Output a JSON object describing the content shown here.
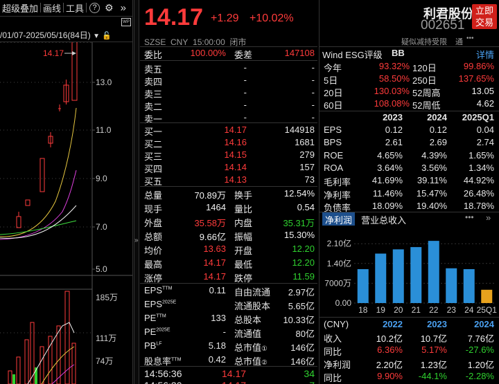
{
  "left": {
    "toolbar": {
      "overlay": "超级叠加",
      "drawline": "画线",
      "tools": "工具",
      "help_icon": "?",
      "gear_icon": "⚙",
      "expand_icon": "»"
    },
    "range_label": "/01/07-2025/05/16(84日)",
    "price_labels": [
      "13.0",
      "11.0",
      "9.0",
      "7.0",
      "5.0"
    ],
    "high_marker": "14.17",
    "vol_labels": [
      "185万",
      "111万",
      "74万"
    ]
  },
  "header": {
    "price": "14.17",
    "change": "+1.29",
    "change_pct": "+10.02%",
    "exchange": "SZSE",
    "currency": "CNY",
    "time": "15:00:00",
    "status": "闭市",
    "name": "利君股份",
    "code": "002651",
    "trade_btn_line1": "立即",
    "trade_btn_line2": "交易",
    "note": "疑似减持受限",
    "note2": "通"
  },
  "colors": {
    "up": "#ff3b3b",
    "down": "#2fd12f",
    "accent": "#1d4f8c",
    "bar": "#2a8fd8",
    "bar_last": "#e8a21d",
    "highlight": "#f0a030"
  },
  "orderbook": {
    "weibi_label": "委比",
    "weibi": "100.00%",
    "weicha_label": "委差",
    "weicha": "147108",
    "asks": [
      {
        "label": "卖五",
        "price": "-",
        "vol": "-"
      },
      {
        "label": "卖四",
        "price": "-",
        "vol": "-"
      },
      {
        "label": "卖三",
        "price": "-",
        "vol": "-"
      },
      {
        "label": "卖二",
        "price": "-",
        "vol": "-"
      },
      {
        "label": "卖一",
        "price": "-",
        "vol": "-"
      }
    ],
    "bids": [
      {
        "label": "买一",
        "price": "14.17",
        "vol": "144918"
      },
      {
        "label": "买二",
        "price": "14.16",
        "vol": "1681"
      },
      {
        "label": "买三",
        "price": "14.15",
        "vol": "279"
      },
      {
        "label": "买四",
        "price": "14.14",
        "vol": "157"
      },
      {
        "label": "买五",
        "price": "14.13",
        "vol": "73"
      }
    ]
  },
  "stats": [
    {
      "l1": "总量",
      "v1": "70.89万",
      "c1": "white",
      "l2": "换手",
      "v2": "12.54%",
      "c2": "white"
    },
    {
      "l1": "现手",
      "v1": "1464",
      "c1": "white",
      "l2": "量比",
      "v2": "0.54",
      "c2": "white"
    },
    {
      "l1": "外盘",
      "v1": "35.58万",
      "c1": "red",
      "l2": "内盘",
      "v2": "35.31万",
      "c2": "green"
    },
    {
      "l1": "总额",
      "v1": "9.66亿",
      "c1": "white",
      "l2": "振幅",
      "v2": "15.30%",
      "c2": "white"
    },
    {
      "l1": "均价",
      "v1": "13.63",
      "c1": "red",
      "l2": "开盘",
      "v2": "12.20",
      "c2": "green"
    },
    {
      "l1": "最高",
      "v1": "14.17",
      "c1": "red",
      "l2": "最低",
      "v2": "12.20",
      "c2": "green"
    },
    {
      "l1": "涨停",
      "v1": "14.17",
      "c1": "red",
      "l2": "跌停",
      "v2": "11.59",
      "c2": "green"
    }
  ],
  "fundamentals": [
    {
      "l1": "EPS",
      "s1": "TTM",
      "v1": "0.11",
      "l2": "自由流通",
      "s2": "",
      "v2": "2.97亿"
    },
    {
      "l1": "EPS",
      "s1": "2025E",
      "v1": "",
      "l2": "流通股本",
      "s2": "",
      "v2": "5.65亿"
    },
    {
      "l1": "PE",
      "s1": "TTM",
      "v1": "133",
      "l2": "总股本",
      "s2": "",
      "v2": "10.33亿"
    },
    {
      "l1": "PE",
      "s1": "2025E",
      "v1": "-",
      "l2": "流通值",
      "s2": "",
      "v2": "80亿"
    },
    {
      "l1": "PB",
      "s1": "LF",
      "v1": "5.18",
      "l2": "总市值",
      "s2": "①",
      "v2": "146亿"
    },
    {
      "l1": "股息率",
      "s1": "TTM",
      "v1": "0.42",
      "l2": "总市值",
      "s2": "②",
      "v2": "146亿"
    }
  ],
  "ticks": [
    {
      "time": "14:56:36",
      "price": "14.17",
      "vol": "34"
    },
    {
      "time": "14:56:30",
      "price": "14.17",
      "vol": "7"
    }
  ],
  "esg": {
    "label": "Wind ESG评级",
    "rating": "BB",
    "detail": "详情"
  },
  "periods": [
    {
      "l1": "今年",
      "v1": "93.32%",
      "l2": "120日",
      "v2": "99.86%",
      "c2": "red"
    },
    {
      "l1": "5日",
      "v1": "58.50%",
      "l2": "250日",
      "v2": "137.65%",
      "c2": "red"
    },
    {
      "l1": "20日",
      "v1": "130.03%",
      "l2": "52周高",
      "v2": "13.05",
      "c2": "white"
    },
    {
      "l1": "60日",
      "v1": "108.08%",
      "l2": "52周低",
      "v2": "4.62",
      "c2": "white"
    }
  ],
  "fin_headers": [
    "2023",
    "2024",
    "2025Q1"
  ],
  "fin_rows": [
    {
      "label": "EPS",
      "vals": [
        "0.12",
        "0.12",
        "0.04"
      ]
    },
    {
      "label": "BPS",
      "vals": [
        "2.61",
        "2.69",
        "2.74"
      ]
    },
    {
      "label": "ROE",
      "vals": [
        "4.65%",
        "4.39%",
        "1.65%"
      ]
    },
    {
      "label": "ROA",
      "vals": [
        "3.64%",
        "3.56%",
        "1.34%"
      ]
    },
    {
      "label": "毛利率",
      "vals": [
        "41.69%",
        "39.11%",
        "44.92%"
      ]
    },
    {
      "label": "净利率",
      "vals": [
        "11.46%",
        "15.47%",
        "26.48%"
      ]
    },
    {
      "label": "负债率",
      "vals": [
        "18.09%",
        "19.40%",
        "18.78%"
      ]
    }
  ],
  "tabs": {
    "net_profit": "净利润",
    "revenue": "营业总收入"
  },
  "chart_data": {
    "type": "bar",
    "categories": [
      "18",
      "19",
      "20",
      "21",
      "22",
      "23",
      "24",
      "25Q1"
    ],
    "values": [
      1.2,
      1.75,
      1.9,
      1.98,
      2.2,
      1.23,
      1.2,
      0.47
    ],
    "ytick_labels": [
      "2.10亿",
      "1.40亿",
      "7000万",
      "0.00"
    ],
    "ylim": [
      0,
      2.35
    ]
  },
  "growth": {
    "unit": "(CNY)",
    "years": [
      "2022",
      "2023",
      "2024"
    ],
    "rows": [
      {
        "label": "收入",
        "vals": [
          "10.2亿",
          "10.7亿",
          "7.76亿"
        ],
        "colors": [
          "white",
          "white",
          "white"
        ]
      },
      {
        "label": "同比",
        "vals": [
          "6.36%",
          "5.17%",
          "-27.6%"
        ],
        "colors": [
          "red",
          "red",
          "green"
        ]
      },
      {
        "label": "净利润",
        "vals": [
          "2.20亿",
          "1.23亿",
          "1.20亿"
        ],
        "colors": [
          "white",
          "white",
          "white"
        ]
      },
      {
        "label": "同比",
        "vals": [
          "9.90%",
          "-44.1%",
          "-2.28%"
        ],
        "colors": [
          "red",
          "green",
          "green"
        ]
      }
    ]
  }
}
